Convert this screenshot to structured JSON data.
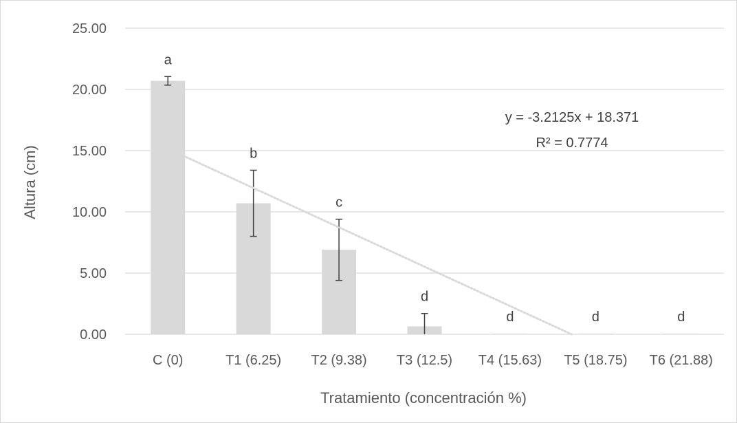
{
  "chart_data": {
    "type": "bar",
    "title": "",
    "xlabel": "Tratamiento (concentración %)",
    "ylabel": "Altura (cm)",
    "ylim": [
      0,
      25
    ],
    "y_ticks": [
      "0.00",
      "5.00",
      "10.00",
      "15.00",
      "20.00",
      "25.00"
    ],
    "grid": "horizontal",
    "categories": [
      "C (0)",
      "T1 (6.25)",
      "T2 (9.38)",
      "T3 (12.5)",
      "T4 (15.63)",
      "T5 (18.75)",
      "T6 (21.88)"
    ],
    "values": [
      20.7,
      10.7,
      6.9,
      0.65,
      0.05,
      0.05,
      0.05
    ],
    "error": [
      0.35,
      2.7,
      2.5,
      1.05,
      0,
      0,
      0
    ],
    "significance_letters": [
      "a",
      "b",
      "c",
      "d",
      "d",
      "d",
      "d"
    ],
    "bar_color": "#d9d9d9",
    "trendline": {
      "type": "linear",
      "slope": -3.2125,
      "intercept": 18.371,
      "equation": "y = -3.2125x + 18.371",
      "r_squared": "R² = 0.7774",
      "color": "#d9d9d9"
    }
  }
}
